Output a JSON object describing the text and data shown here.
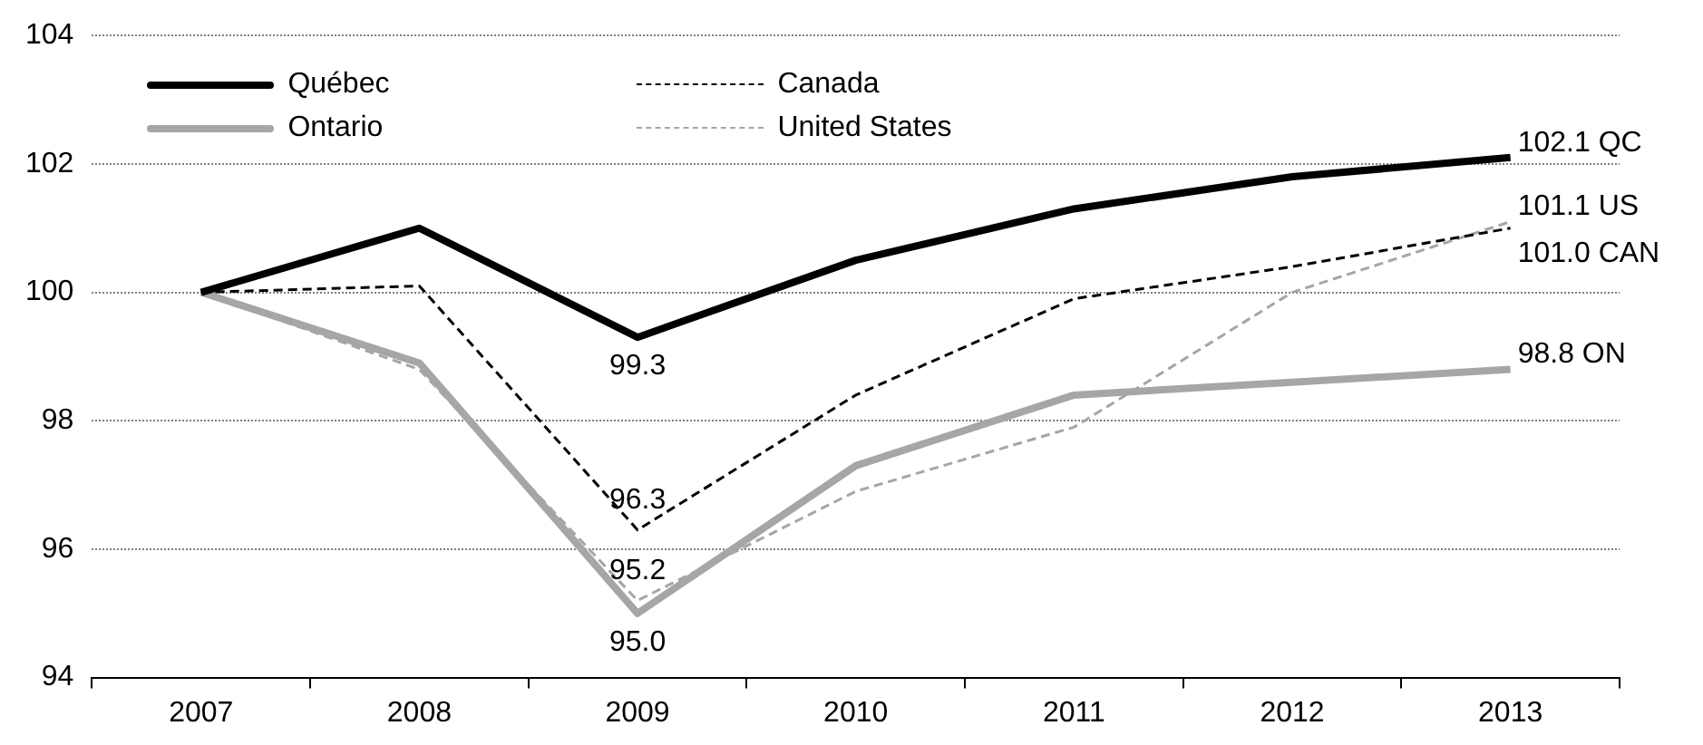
{
  "chart_data": {
    "type": "line",
    "categories": [
      "2007",
      "2008",
      "2009",
      "2010",
      "2011",
      "2012",
      "2013"
    ],
    "series": [
      {
        "name": "Québec",
        "color": "#000000",
        "line_style": "solid",
        "values": [
          100,
          101.0,
          99.3,
          100.5,
          101.3,
          101.8,
          102.1
        ]
      },
      {
        "name": "Canada",
        "color": "#000000",
        "line_style": "dashed",
        "values": [
          100,
          100.1,
          96.3,
          98.4,
          99.9,
          100.4,
          101.0
        ]
      },
      {
        "name": "Ontario",
        "color": "#a6a6a6",
        "line_style": "solid",
        "values": [
          100,
          98.9,
          95.0,
          97.3,
          98.4,
          98.6,
          98.8
        ]
      },
      {
        "name": "United States",
        "color": "#a6a6a6",
        "line_style": "dashed",
        "values": [
          100,
          98.8,
          95.2,
          96.9,
          97.9,
          100.0,
          101.1
        ]
      }
    ],
    "ylim": [
      94,
      104
    ],
    "yticks": [
      94,
      96,
      98,
      100,
      102,
      104
    ],
    "grid": "y",
    "legend": "top left",
    "marker": "none",
    "annotations": [
      {
        "text": "99.3",
        "x": "2009",
        "y": 99.3
      },
      {
        "text": "96.3",
        "x": "2009",
        "y": 96.3
      },
      {
        "text": "95.2",
        "x": "2009",
        "y": 95.2
      },
      {
        "text": "95.0",
        "x": "2009",
        "y": 95.0
      },
      {
        "text": "102.1 QC",
        "x": "2013",
        "y": 102.1
      },
      {
        "text": "101.1 US",
        "x": "2013",
        "y": 101.1
      },
      {
        "text": "101.0 CAN",
        "x": "2013",
        "y": 101.0
      },
      {
        "text": "98.8 ON",
        "x": "2013",
        "y": 98.8
      }
    ]
  }
}
